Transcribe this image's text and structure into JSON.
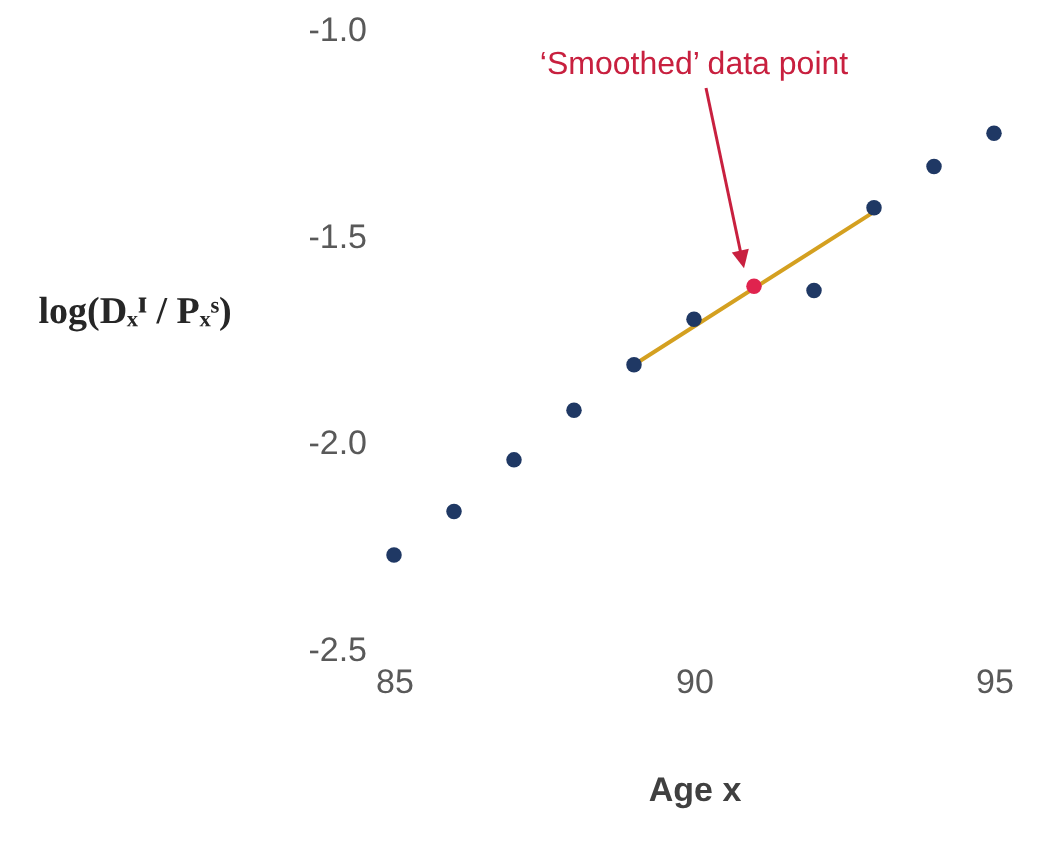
{
  "chart_data": {
    "type": "scatter",
    "xlabel": "Age x",
    "ylabel": "log(Dₓᴵ / Pₓˢ)",
    "xlim": [
      85,
      95
    ],
    "xticks": [
      85,
      90,
      95
    ],
    "ylim": [
      -2.5,
      -1
    ],
    "yticks": [
      {
        "value": -2.5,
        "label": "-2.5"
      },
      {
        "value": -2,
        "label": "-2.0"
      },
      {
        "value": -1.5,
        "label": "-1.5"
      },
      {
        "value": -1,
        "label": "-1.0"
      }
    ],
    "grid": false,
    "marker": "circle",
    "annotations": [
      "‘Smoothed’ data point"
    ],
    "series": [
      {
        "type": "line",
        "marker": "none",
        "color": "#d4a020",
        "x": [
          89,
          93
        ],
        "values": [
          -1.81,
          -1.44
        ]
      },
      {
        "color": "#1f3864",
        "x": [
          85,
          86,
          87,
          88,
          89,
          90,
          92,
          93,
          94,
          95
        ],
        "values": [
          -2.27,
          -2.165,
          -2.04,
          -1.92,
          -1.81,
          -1.7,
          -1.63,
          -1.43,
          -1.33,
          -1.25
        ]
      },
      {
        "color": "#e0234e",
        "x": [
          91
        ],
        "values": [
          -1.62
        ]
      }
    ]
  }
}
